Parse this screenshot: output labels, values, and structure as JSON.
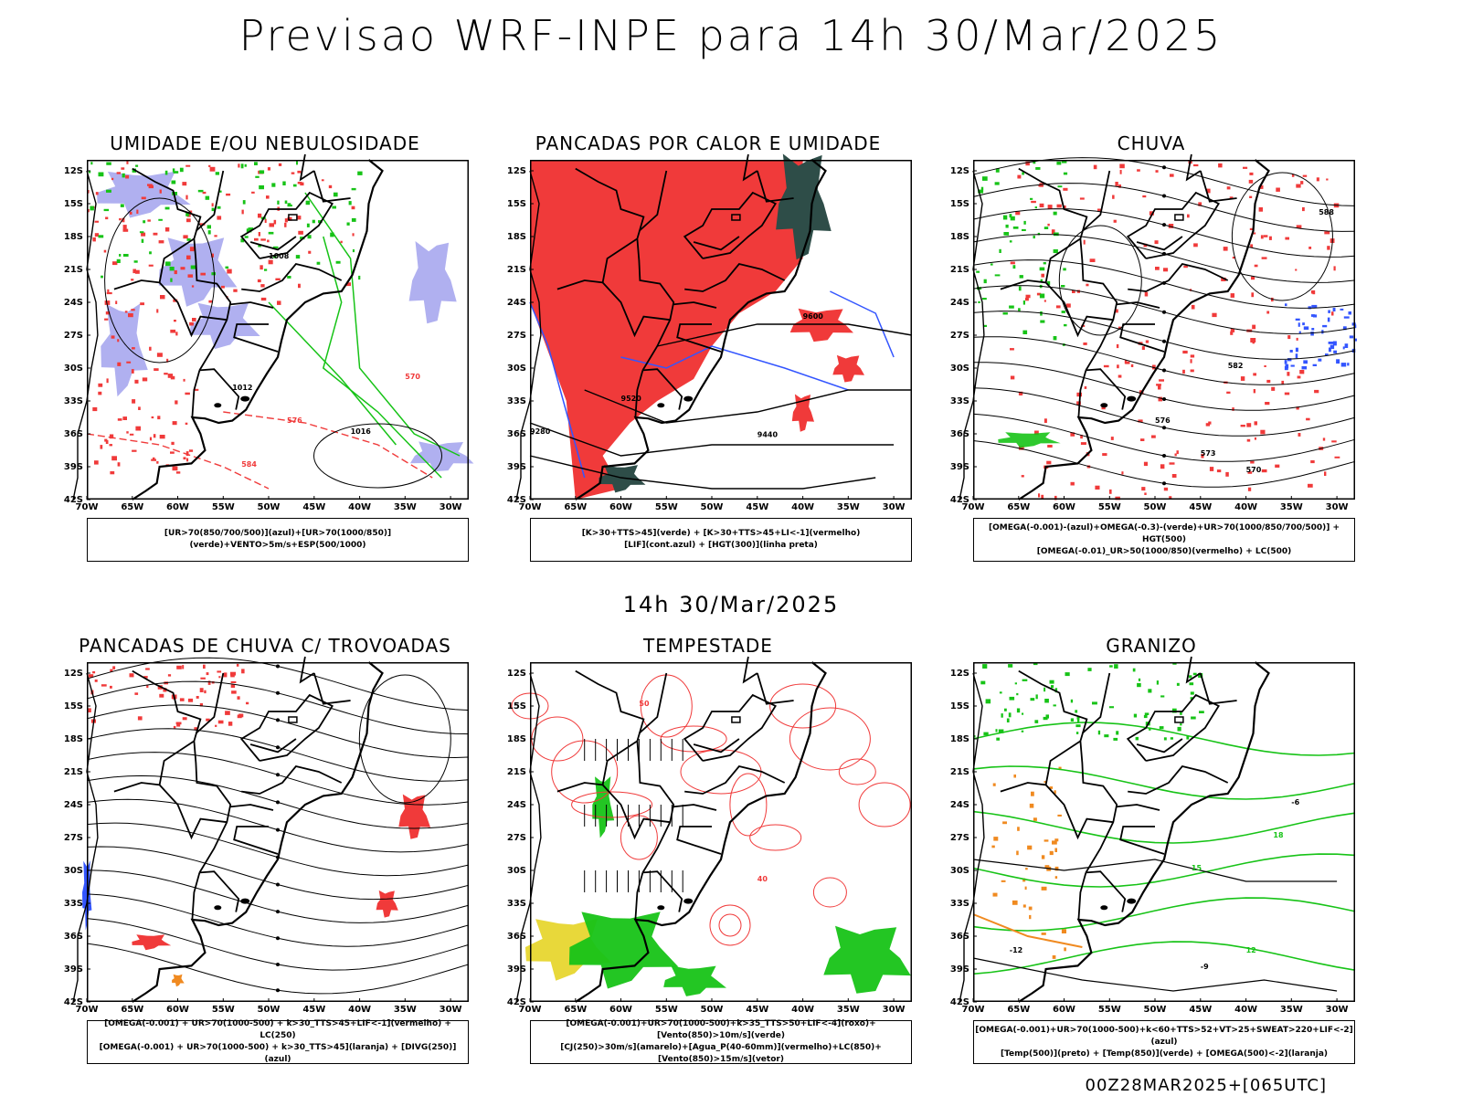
{
  "title": "Previsao WRF-INPE  para 14h 30/Mar/2025",
  "mid_title": "14h 30/Mar/2025",
  "footer": "00Z28MAR2025+[065UTC]",
  "axis": {
    "lat_labels": [
      "12S",
      "15S",
      "18S",
      "21S",
      "24S",
      "27S",
      "30S",
      "33S",
      "36S",
      "39S",
      "42S"
    ],
    "lon_labels": [
      "70W",
      "65W",
      "60W",
      "55W",
      "50W",
      "45W",
      "40W",
      "35W",
      "30W"
    ]
  },
  "panels": [
    {
      "title": "UMIDADE E/OU NEBULOSIDADE",
      "legend": [
        "[UR>70(850/700/500)](azul)+[UR>70(1000/850)](verde)+VENTO>5m/s+ESP(500/1000)"
      ],
      "contour_labels": [
        "1008",
        "1012",
        "1016",
        "576",
        "570",
        "584"
      ]
    },
    {
      "title": "PANCADAS POR CALOR E UMIDADE",
      "legend": [
        "[K>30+TTS>45](verde) + [K>30+TTS>45+LI<-1](vermelho)",
        "[LIF](cont.azul) + [HGT(300)](linha preta)"
      ],
      "contour_labels": [
        "9600",
        "9520",
        "9440",
        "9280"
      ]
    },
    {
      "title": "CHUVA",
      "legend": [
        "[OMEGA(-0.001)-(azul)+OMEGA(-0.3)-(verde)+UR>70(1000/850/700/500)] + HGT(500)",
        "[OMEGA(-0.01)_UR>50(1000/850)(vermelho) + LC(500)"
      ],
      "contour_labels": [
        "588",
        "582",
        "576",
        "573",
        "570"
      ]
    },
    {
      "title": "PANCADAS DE CHUVA C/ TROVOADAS",
      "legend": [
        "[OMEGA(-0.001) + UR>70(1000-500) + k>30_TTS>45+LIF<-1](vermelho) + LC(250)",
        "[OMEGA(-0.001) + UR>70(1000-500) + k>30_TTS>45](laranja) + [DIVG(250)](azul)"
      ],
      "contour_labels": []
    },
    {
      "title": "TEMPESTADE",
      "legend": [
        "[OMEGA(-0.001)+UR>70(1000-500)+k>35_TTS>50+LIF<-4](roxo)+[Vento(850)>10m/s](verde)",
        "[CJ(250)>30m/s](amarelo)+[Agua_P(40-60mm)](vermelho)+LC(850)+[Vento(850)>15m/s](vetor)"
      ],
      "contour_labels": [
        "40",
        "50"
      ]
    },
    {
      "title": "GRANIZO",
      "legend": [
        "[OMEGA(-0.001)+UR>70(1000-500)+k<60+TTS>52+VT>25+SWEAT>220+LIF<-2](azul)",
        "[Temp(500)](preto) + [Temp(850)](verde) + [OMEGA(500)<-2](laranja)"
      ],
      "contour_labels": [
        "-12",
        "-9",
        "-6",
        "15",
        "18",
        "12"
      ]
    }
  ],
  "colors": {
    "red": "#f03a3a",
    "green": "#17c317",
    "blue": "#3355ff",
    "lavender": "#b0b0f0",
    "darkgreen": "#2e4d48",
    "yellow": "#e8d83a",
    "orange": "#f08a20",
    "purple": "#a020d0"
  }
}
